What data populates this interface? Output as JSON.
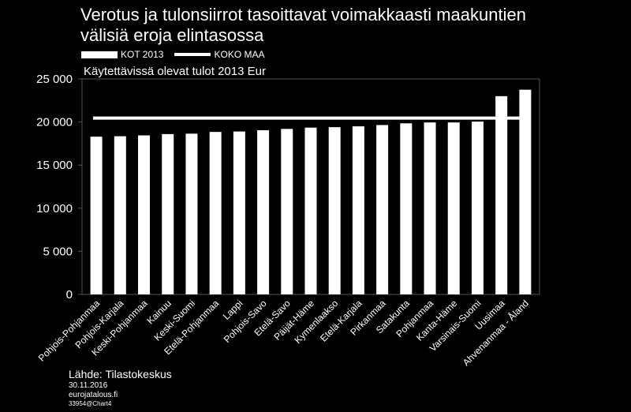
{
  "title_lines": [
    "Verotus ja tulonsiirrot tasoittavat voimakkaasti maakuntien",
    "välisiä eroja elintasossa"
  ],
  "legend": {
    "bar_label": "KOT 2013",
    "line_label": "KOKO MAA"
  },
  "footer": {
    "source": "Lähde: Tilastokeskus",
    "date": "30.11.2016",
    "site": "eurojatalous.fi",
    "code": "33954@Chart4"
  },
  "chart_data": {
    "type": "bar",
    "title": "Verotus ja tulonsiirrot tasoittavat voimakkaasti maakuntien välisiä eroja elintasossa",
    "subtitle": "Käytettävissä olevat tulot 2013 Eur",
    "xlabel": "",
    "ylabel": "",
    "ylim": [
      0,
      25000
    ],
    "yticks": [
      0,
      5000,
      10000,
      15000,
      20000,
      25000
    ],
    "ytick_labels": [
      "0",
      "5 000",
      "10 000",
      "15 000",
      "20 000",
      "25 000"
    ],
    "grid": false,
    "legend_position": "top-left",
    "categories": [
      "Pohjois-Pohjanmaa",
      "Pohjois-Karjala",
      "Keski-Pohjanmaa",
      "Kainuu",
      "Keski-Suomi",
      "Etelä-Pohjanmaa",
      "Lappi",
      "Pohjois-Savo",
      "Etelä-Savo",
      "Päijät-Häme",
      "Kymenlaakso",
      "Etelä-Karjala",
      "Pirkanmaa",
      "Satakunta",
      "Pohjanmaa",
      "Kanta-Häme",
      "Varsinais-Suomi",
      "Uusimaa",
      "Ahvenanmaa - Åland"
    ],
    "series": [
      {
        "name": "KOT 2013",
        "type": "bar",
        "values": [
          18300,
          18350,
          18450,
          18600,
          18650,
          18850,
          18900,
          19050,
          19200,
          19350,
          19400,
          19500,
          19650,
          19850,
          19950,
          19950,
          20050,
          23000,
          23750
        ]
      },
      {
        "name": "KOKO MAA",
        "type": "line",
        "value": 20450
      }
    ],
    "colors": {
      "background": "#000000",
      "bars": "#ffffff",
      "line": "#ffffff",
      "text": "#ffffff"
    }
  }
}
